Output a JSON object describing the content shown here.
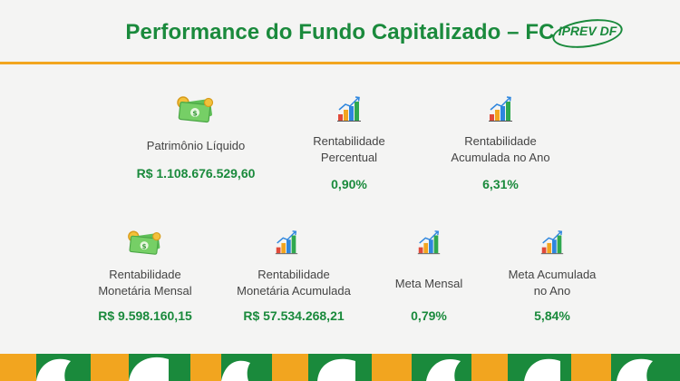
{
  "header": {
    "title": "Performance do Fundo Capitalizado – FC",
    "logo_text": "IPREV DF"
  },
  "cards": [
    {
      "label_1": "Patrimônio Líquido",
      "label_2": "",
      "value": "R$ 1.108.676.529,60",
      "icon": "money-icon"
    },
    {
      "label_1": "Rentabilidade",
      "label_2": "Percentual",
      "value": "0,90%",
      "icon": "bar-chart-icon"
    },
    {
      "label_1": "Rentabilidade",
      "label_2": "Acumulada no Ano",
      "value": "6,31%",
      "icon": "bar-chart-icon"
    },
    {
      "label_1": "Rentabilidade",
      "label_2": "Monetária Mensal",
      "value": "R$ 9.598.160,15",
      "icon": "money-icon"
    },
    {
      "label_1": "Rentabilidade",
      "label_2": "Monetária Acumulada",
      "value": "R$ 57.534.268,21",
      "icon": "bar-chart-icon"
    },
    {
      "label_1": "Meta Mensal",
      "label_2": "",
      "value": "0,79%",
      "icon": "bar-chart-icon"
    },
    {
      "label_1": "Meta Acumulada",
      "label_2": "no Ano",
      "value": "5,84%",
      "icon": "bar-chart-icon"
    }
  ],
  "colors": {
    "green": "#1a8a3c",
    "orange": "#f2a51f",
    "background": "#f4f4f3"
  }
}
